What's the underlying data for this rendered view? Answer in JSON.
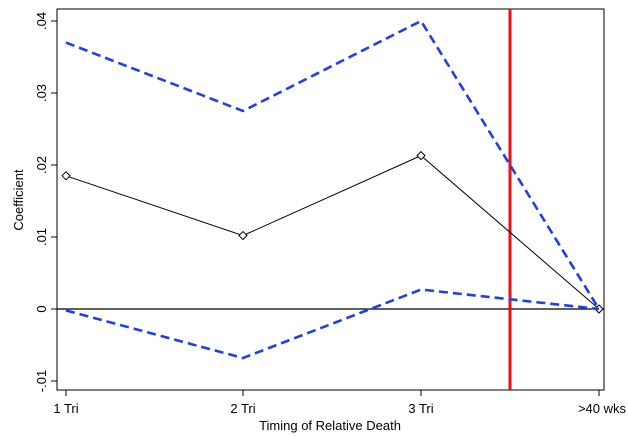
{
  "chart_data": {
    "type": "line",
    "title": "",
    "xlabel": "Timing of Relative Death",
    "ylabel": "Coefficient",
    "categories": [
      "1 Tri",
      "2 Tri",
      "3 Tri",
      ">40 wks"
    ],
    "ylim": [
      -0.011,
      0.041
    ],
    "yticks": [
      {
        "value": -0.01,
        "label": "-.01"
      },
      {
        "value": 0,
        "label": "0"
      },
      {
        "value": 0.01,
        "label": ".01"
      },
      {
        "value": 0.02,
        "label": ".02"
      },
      {
        "value": 0.03,
        "label": ".03"
      },
      {
        "value": 0.04,
        "label": ".04"
      }
    ],
    "series": [
      {
        "values": [
          0.0185,
          0.0102,
          0.0213,
          0.0
        ],
        "style": "solid",
        "color": "#000000",
        "marker": "diamond"
      },
      {
        "values": [
          0.037,
          0.0275,
          0.04,
          0.0
        ],
        "style": "dashed",
        "color": "#1f3fe8"
      },
      {
        "values": [
          -0.0002,
          -0.0068,
          0.0027,
          0.0
        ],
        "style": "dashed",
        "color": "#1f3fe8"
      }
    ],
    "reference_lines": [
      {
        "axis": "y",
        "value": 0,
        "color": "#000000"
      },
      {
        "axis": "x",
        "value": 2.5,
        "color": "#ee1111"
      }
    ],
    "grid": false,
    "legend": "none"
  }
}
